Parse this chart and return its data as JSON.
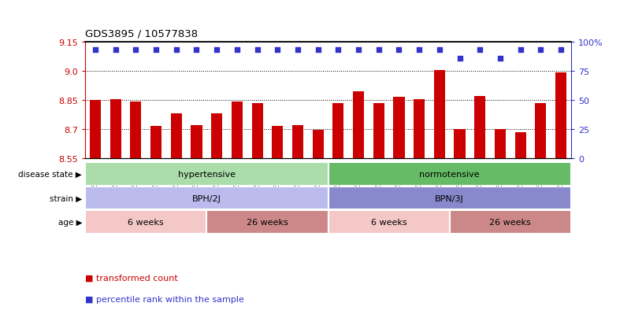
{
  "title": "GDS3895 / 10577838",
  "samples": [
    "GSM618086",
    "GSM618087",
    "GSM618088",
    "GSM618089",
    "GSM618090",
    "GSM618091",
    "GSM618074",
    "GSM618075",
    "GSM618076",
    "GSM618077",
    "GSM618078",
    "GSM618079",
    "GSM618092",
    "GSM618093",
    "GSM618094",
    "GSM618095",
    "GSM618096",
    "GSM618097",
    "GSM618080",
    "GSM618081",
    "GSM618082",
    "GSM618083",
    "GSM618084",
    "GSM618085"
  ],
  "bar_values": [
    8.85,
    8.855,
    8.84,
    8.715,
    8.78,
    8.72,
    8.78,
    8.84,
    8.835,
    8.715,
    8.72,
    8.695,
    8.835,
    8.895,
    8.835,
    8.865,
    8.855,
    9.005,
    8.7,
    8.87,
    8.7,
    8.685,
    8.835,
    8.99
  ],
  "percentile_values": [
    93,
    93,
    93,
    93,
    93,
    93,
    93,
    93,
    93,
    93,
    93,
    93,
    93,
    93,
    93,
    93,
    93,
    93,
    86,
    93,
    86,
    93,
    93,
    93
  ],
  "bar_color": "#cc0000",
  "dot_color": "#3333cc",
  "ylim_left": [
    8.55,
    9.15
  ],
  "ylim_right": [
    0,
    100
  ],
  "yticks_left": [
    8.55,
    8.7,
    8.85,
    9.0,
    9.15
  ],
  "yticks_right": [
    0,
    25,
    50,
    75,
    100
  ],
  "ytick_labels_right": [
    "0",
    "25",
    "50",
    "75",
    "100%"
  ],
  "grid_lines": [
    8.7,
    8.85,
    9.0
  ],
  "disease_state_groups": [
    {
      "label": "hypertensive",
      "start": 0,
      "end": 12,
      "color": "#aaddaa"
    },
    {
      "label": "normotensive",
      "start": 12,
      "end": 24,
      "color": "#66bb66"
    }
  ],
  "strain_groups": [
    {
      "label": "BPH/2J",
      "start": 0,
      "end": 12,
      "color": "#bbbbee"
    },
    {
      "label": "BPN/3J",
      "start": 12,
      "end": 24,
      "color": "#8888cc"
    }
  ],
  "age_groups": [
    {
      "label": "6 weeks",
      "start": 0,
      "end": 6,
      "color": "#f5c8c8"
    },
    {
      "label": "26 weeks",
      "start": 6,
      "end": 12,
      "color": "#cc8888"
    },
    {
      "label": "6 weeks",
      "start": 12,
      "end": 18,
      "color": "#f5c8c8"
    },
    {
      "label": "26 weeks",
      "start": 18,
      "end": 24,
      "color": "#cc8888"
    }
  ],
  "row_labels": [
    "disease state",
    "strain",
    "age"
  ],
  "legend_items": [
    {
      "label": "transformed count",
      "color": "#cc0000"
    },
    {
      "label": "percentile rank within the sample",
      "color": "#3333cc"
    }
  ],
  "bar_width": 0.55,
  "background_color": "#ffffff",
  "tick_color_left": "#cc0000",
  "tick_color_right": "#3333cc"
}
